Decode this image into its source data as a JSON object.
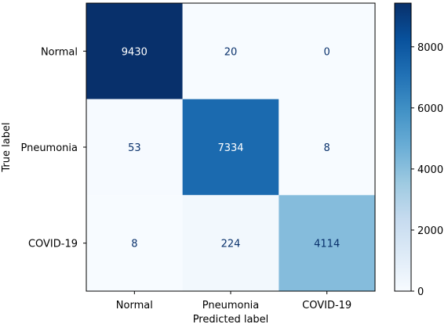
{
  "chart_data": {
    "type": "heatmap",
    "xlabel": "Predicted label",
    "ylabel": "True label",
    "x_categories": [
      "Normal",
      "Pneumonia",
      "COVID-19"
    ],
    "y_categories": [
      "Normal",
      "Pneumonia",
      "COVID-19"
    ],
    "values": [
      [
        9430,
        20,
        0
      ],
      [
        53,
        7334,
        8
      ],
      [
        8,
        224,
        4114
      ]
    ],
    "colorbar": {
      "min": 0,
      "max": 9430,
      "ticks": [
        0,
        2000,
        4000,
        6000,
        8000
      ]
    },
    "colormap": "Blues",
    "colors": {
      "low_text": "#08306b",
      "high_text": "#ffffff"
    }
  }
}
